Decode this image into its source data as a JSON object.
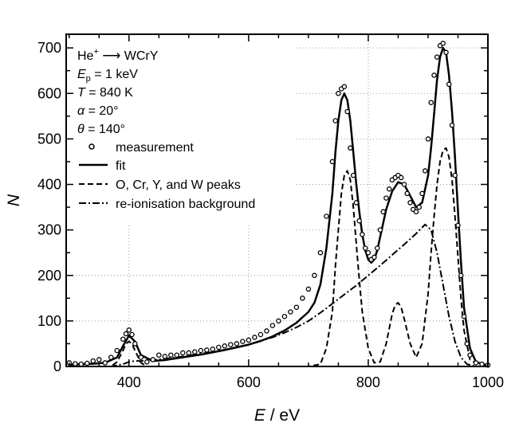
{
  "chart_data": {
    "type": "line",
    "title": "",
    "xlabel_var": "E",
    "xlabel_unit": " / eV",
    "ylabel_var": "N",
    "xlim": [
      295,
      1000
    ],
    "ylim": [
      0,
      730
    ],
    "xticks": [
      400,
      600,
      800,
      1000
    ],
    "xtick_labels": [
      "400",
      "600",
      "800",
      "1000"
    ],
    "yticks": [
      0,
      100,
      200,
      300,
      400,
      500,
      600,
      700
    ],
    "ytick_labels": [
      "0",
      "100",
      "200",
      "300",
      "400",
      "500",
      "600",
      "700"
    ],
    "grid": true,
    "legend_position": "top-left",
    "annotations": {
      "reaction_left": "He",
      "reaction_sup": "+",
      "reaction_right": " ⟶ WCrY",
      "ep_var": "E",
      "ep_sub": "p",
      "ep_value": " = 1 keV",
      "t_var": "T",
      "t_value": " = 840 K",
      "alpha_var": "α",
      "alpha_value": " = 20°",
      "theta_var": "θ",
      "theta_value": " = 140°"
    },
    "series": [
      {
        "name": "measurement",
        "style": "markers",
        "x": [
          300,
          310,
          320,
          330,
          340,
          350,
          360,
          370,
          380,
          390,
          395,
          400,
          405,
          410,
          420,
          430,
          440,
          450,
          460,
          470,
          480,
          490,
          500,
          510,
          520,
          530,
          540,
          550,
          560,
          570,
          580,
          590,
          600,
          610,
          620,
          630,
          640,
          650,
          660,
          670,
          680,
          690,
          700,
          710,
          720,
          730,
          740,
          745,
          750,
          755,
          760,
          765,
          770,
          775,
          780,
          785,
          790,
          795,
          800,
          805,
          810,
          815,
          820,
          825,
          830,
          835,
          840,
          845,
          850,
          855,
          860,
          865,
          870,
          875,
          880,
          885,
          890,
          895,
          900,
          905,
          910,
          915,
          920,
          925,
          930,
          935,
          940,
          945,
          950,
          955,
          960,
          965,
          970,
          980,
          990,
          1000
        ],
        "y": [
          8,
          6,
          5,
          7,
          12,
          15,
          8,
          20,
          35,
          60,
          72,
          80,
          70,
          50,
          20,
          10,
          15,
          25,
          22,
          25,
          25,
          30,
          30,
          32,
          35,
          36,
          38,
          42,
          45,
          48,
          50,
          55,
          58,
          64,
          70,
          78,
          90,
          100,
          110,
          120,
          130,
          150,
          170,
          200,
          250,
          330,
          450,
          540,
          600,
          610,
          615,
          560,
          480,
          420,
          360,
          320,
          290,
          260,
          250,
          235,
          240,
          260,
          300,
          340,
          370,
          390,
          410,
          415,
          420,
          415,
          400,
          380,
          360,
          345,
          340,
          350,
          380,
          430,
          500,
          580,
          640,
          680,
          705,
          710,
          690,
          620,
          530,
          420,
          310,
          200,
          110,
          50,
          25,
          8,
          5,
          3
        ]
      },
      {
        "name": "fit",
        "style": "solid",
        "x": [
          300,
          320,
          340,
          360,
          380,
          390,
          400,
          410,
          420,
          440,
          460,
          480,
          500,
          520,
          540,
          560,
          580,
          600,
          620,
          640,
          660,
          680,
          700,
          710,
          720,
          730,
          740,
          745,
          750,
          755,
          760,
          765,
          770,
          775,
          780,
          785,
          790,
          795,
          800,
          805,
          810,
          815,
          820,
          830,
          840,
          850,
          860,
          870,
          880,
          890,
          900,
          905,
          910,
          915,
          920,
          925,
          930,
          935,
          940,
          945,
          950,
          955,
          960,
          970,
          980,
          1000
        ],
        "y": [
          4,
          5,
          6,
          8,
          20,
          45,
          68,
          55,
          25,
          12,
          14,
          18,
          22,
          26,
          31,
          36,
          42,
          48,
          56,
          66,
          79,
          96,
          120,
          140,
          180,
          260,
          380,
          470,
          540,
          585,
          600,
          585,
          540,
          470,
          400,
          340,
          290,
          255,
          235,
          228,
          235,
          255,
          285,
          345,
          385,
          405,
          400,
          375,
          350,
          360,
          420,
          480,
          555,
          630,
          680,
          700,
          690,
          640,
          560,
          460,
          340,
          230,
          130,
          40,
          10,
          2
        ]
      },
      {
        "name": "O, Cr, Y, and W peaks",
        "style": "dashed",
        "x": [
          300,
          340,
          370,
          380,
          390,
          395,
          400,
          405,
          410,
          420,
          430,
          700,
          720,
          730,
          740,
          745,
          750,
          755,
          760,
          765,
          770,
          775,
          780,
          785,
          790,
          800,
          810,
          820,
          830,
          840,
          845,
          850,
          855,
          860,
          870,
          880,
          890,
          900,
          905,
          910,
          915,
          920,
          925,
          930,
          935,
          940,
          945,
          950,
          955,
          960,
          970,
          990,
          1000
        ],
        "y": [
          0,
          0,
          0,
          10,
          35,
          50,
          55,
          50,
          35,
          8,
          0,
          0,
          5,
          40,
          120,
          220,
          300,
          380,
          420,
          430,
          410,
          350,
          270,
          190,
          120,
          40,
          8,
          10,
          50,
          115,
          135,
          140,
          130,
          105,
          50,
          20,
          50,
          160,
          250,
          330,
          400,
          450,
          475,
          480,
          460,
          410,
          330,
          240,
          150,
          80,
          15,
          0,
          0
        ]
      },
      {
        "name": "re-ionisation background",
        "style": "dashdot",
        "x": [
          300,
          340,
          370,
          390,
          400,
          410,
          420,
          440,
          460,
          480,
          500,
          520,
          540,
          560,
          580,
          600,
          620,
          640,
          660,
          680,
          700,
          720,
          740,
          760,
          780,
          800,
          820,
          840,
          860,
          880,
          895,
          905,
          915,
          925,
          935,
          945,
          955,
          965,
          980,
          1000
        ],
        "y": [
          0,
          0,
          0,
          5,
          10,
          12,
          12,
          14,
          17,
          20,
          24,
          28,
          32,
          37,
          42,
          48,
          56,
          64,
          74,
          86,
          100,
          118,
          138,
          158,
          178,
          200,
          222,
          245,
          268,
          292,
          312,
          300,
          250,
          180,
          110,
          55,
          20,
          5,
          0,
          0
        ]
      }
    ]
  }
}
